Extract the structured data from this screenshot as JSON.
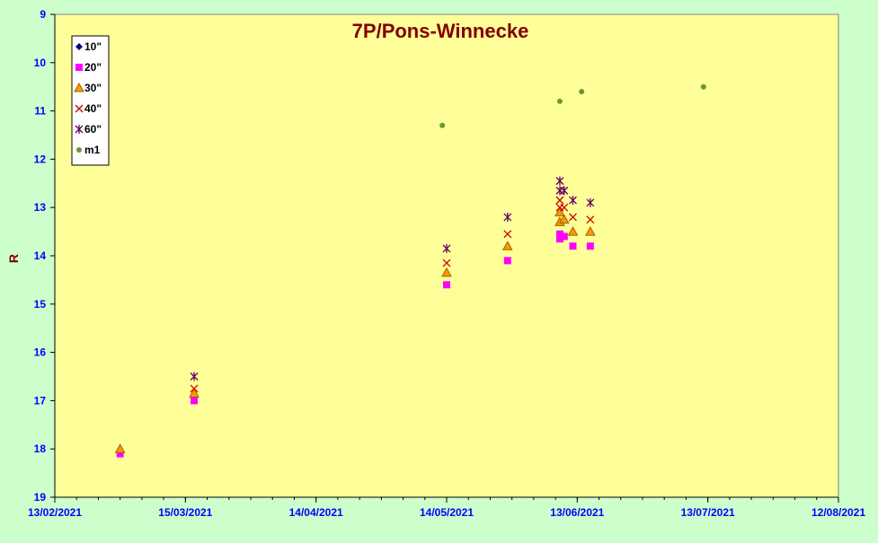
{
  "colors": {
    "background": "#ccffcc",
    "plot_area": "#ffff99",
    "title": "#800000",
    "axis_labels": "#0000ff",
    "ylabel": "#800000"
  },
  "chart_data": {
    "type": "scatter",
    "title": "7P/Pons-Winnecke",
    "xlabel": "",
    "ylabel": "R",
    "y_reversed": true,
    "ylim": [
      9,
      19
    ],
    "yticks": [
      "9",
      "10",
      "11",
      "12",
      "13",
      "14",
      "15",
      "16",
      "17",
      "18",
      "19"
    ],
    "xlim": [
      "2021-02-13",
      "2021-08-12"
    ],
    "xticks": [
      "13/02/2021",
      "15/03/2021",
      "14/04/2021",
      "14/05/2021",
      "13/06/2021",
      "13/07/2021",
      "12/08/2021"
    ],
    "grid": false,
    "legend_position": "top-left",
    "series": [
      {
        "name": "10\"",
        "marker": "diamond",
        "color": "#000080",
        "points": []
      },
      {
        "name": "20\"",
        "marker": "square",
        "color": "#ff00ff",
        "points": [
          {
            "x": "2021-02-28",
            "y": 18.1
          },
          {
            "x": "2021-03-17",
            "y": 17.0
          },
          {
            "x": "2021-05-14",
            "y": 14.6
          },
          {
            "x": "2021-05-28",
            "y": 14.1
          },
          {
            "x": "2021-06-09",
            "y": 13.55
          },
          {
            "x": "2021-06-09",
            "y": 13.65
          },
          {
            "x": "2021-06-10",
            "y": 13.6
          },
          {
            "x": "2021-06-12",
            "y": 13.8
          },
          {
            "x": "2021-06-16",
            "y": 13.8
          }
        ]
      },
      {
        "name": "30\"",
        "marker": "triangle",
        "color": "#ff9900",
        "points": [
          {
            "x": "2021-02-28",
            "y": 18.0
          },
          {
            "x": "2021-03-17",
            "y": 16.85
          },
          {
            "x": "2021-05-14",
            "y": 14.35
          },
          {
            "x": "2021-05-28",
            "y": 13.8
          },
          {
            "x": "2021-06-09",
            "y": 13.3
          },
          {
            "x": "2021-06-09",
            "y": 13.1
          },
          {
            "x": "2021-06-10",
            "y": 13.25
          },
          {
            "x": "2021-06-12",
            "y": 13.5
          },
          {
            "x": "2021-06-16",
            "y": 13.5
          }
        ]
      },
      {
        "name": "40\"",
        "marker": "x",
        "color": "#cc0000",
        "points": [
          {
            "x": "2021-03-17",
            "y": 16.75
          },
          {
            "x": "2021-05-14",
            "y": 14.15
          },
          {
            "x": "2021-05-28",
            "y": 13.55
          },
          {
            "x": "2021-06-09",
            "y": 13.0
          },
          {
            "x": "2021-06-09",
            "y": 12.85
          },
          {
            "x": "2021-06-10",
            "y": 13.0
          },
          {
            "x": "2021-06-12",
            "y": 13.2
          },
          {
            "x": "2021-06-16",
            "y": 13.25
          }
        ]
      },
      {
        "name": "60\"",
        "marker": "star",
        "color": "#660066",
        "points": [
          {
            "x": "2021-03-17",
            "y": 16.5
          },
          {
            "x": "2021-05-14",
            "y": 13.85
          },
          {
            "x": "2021-05-28",
            "y": 13.2
          },
          {
            "x": "2021-06-09",
            "y": 12.45
          },
          {
            "x": "2021-06-09",
            "y": 12.65
          },
          {
            "x": "2021-06-10",
            "y": 12.65
          },
          {
            "x": "2021-06-12",
            "y": 12.85
          },
          {
            "x": "2021-06-16",
            "y": 12.9
          }
        ]
      },
      {
        "name": "m1",
        "marker": "circle",
        "color": "#669933",
        "points": [
          {
            "x": "2021-05-13",
            "y": 11.3
          },
          {
            "x": "2021-06-09",
            "y": 10.8
          },
          {
            "x": "2021-06-14",
            "y": 10.6
          },
          {
            "x": "2021-07-12",
            "y": 10.5
          }
        ]
      }
    ]
  }
}
